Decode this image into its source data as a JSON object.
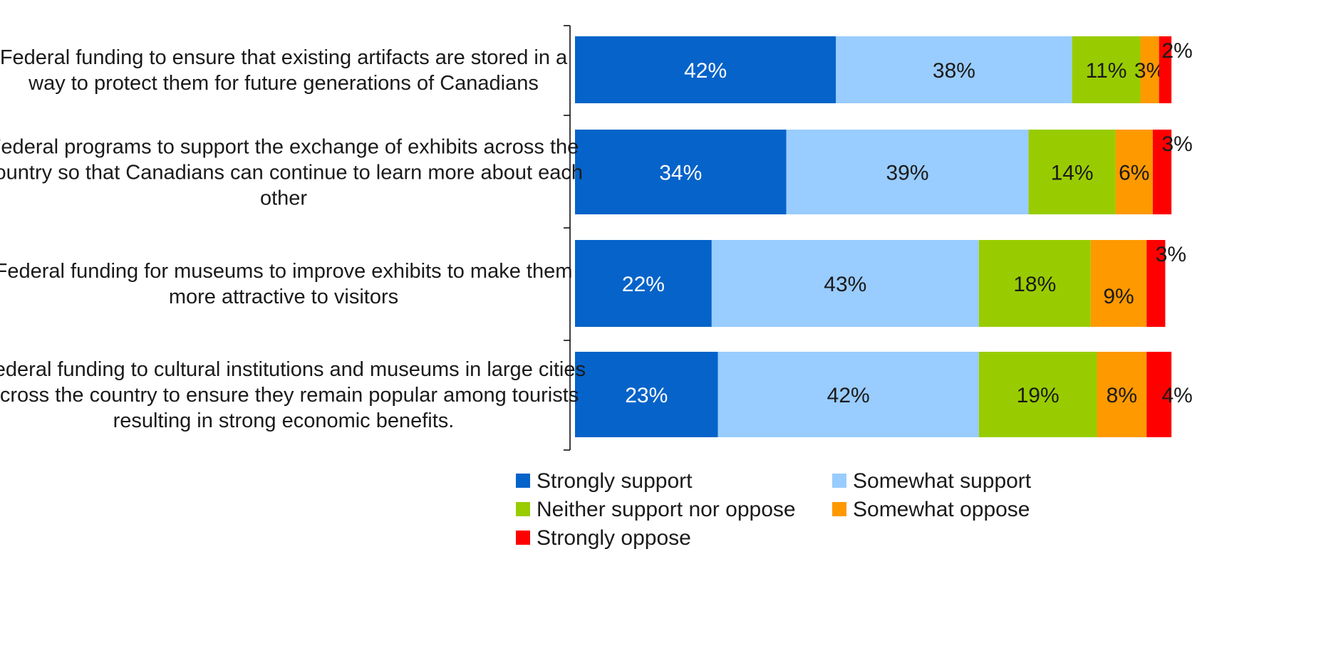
{
  "chart_data": {
    "type": "bar",
    "orientation": "horizontal",
    "stacked": true,
    "title": "",
    "xlabel": "",
    "ylabel": "",
    "xlim": [
      0,
      100
    ],
    "categories": [
      [
        "Federal funding to ensure that existing artifacts are stored in a",
        "way to protect them for future generations of Canadians"
      ],
      [
        "Federal programs to support the exchange of exhibits across the",
        "country so that Canadians can continue to learn more about each",
        "other"
      ],
      [
        "Federal funding for museums to improve exhibits to make them",
        "more attractive to visitors"
      ],
      [
        "Federal funding to cultural institutions and museums in large cities",
        "across the country to ensure they remain popular among tourists",
        "resulting in strong economic benefits."
      ]
    ],
    "series": [
      {
        "name": "Strongly support",
        "color": "#0563C9",
        "label_color": "#ffffff",
        "values": [
          42,
          34,
          22,
          23
        ],
        "labels": [
          "42%",
          "34%",
          "22%",
          "23%"
        ]
      },
      {
        "name": "Somewhat support",
        "color": "#99CCFF",
        "label_color": "#1a1a1a",
        "values": [
          38,
          39,
          43,
          42
        ],
        "labels": [
          "38%",
          "39%",
          "43%",
          "42%"
        ]
      },
      {
        "name": "Neither support nor oppose",
        "color": "#99CC00",
        "label_color": "#1a1a1a",
        "values": [
          11,
          14,
          18,
          19
        ],
        "labels": [
          "11%",
          "14%",
          "18%",
          "19%"
        ]
      },
      {
        "name": "Somewhat oppose",
        "color": "#FF9900",
        "label_color": "#1a1a1a",
        "values": [
          3,
          6,
          9,
          8
        ],
        "labels": [
          "3%",
          "6%",
          "9%",
          "8%"
        ]
      },
      {
        "name": "Strongly oppose",
        "color": "#FF0000",
        "label_color": "#1a1a1a",
        "values": [
          2,
          3,
          3,
          4
        ],
        "labels": [
          "2%",
          "3%",
          "3%",
          "4%"
        ]
      }
    ],
    "legend": {
      "placement": "bottom",
      "entries": [
        "Strongly support",
        "Somewhat support",
        "Neither support nor oppose",
        "Somewhat oppose",
        "Strongly oppose"
      ]
    }
  }
}
